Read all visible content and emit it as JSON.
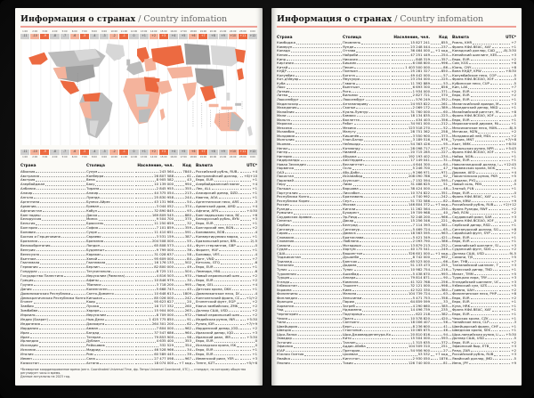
{
  "titles": {
    "ru": "Информация о странах",
    "sep": " / ",
    "en": "Country infomation"
  },
  "table_headers": [
    "Страна",
    "Столица",
    "Население, чел.",
    "Код",
    "Валюта",
    "UTC*"
  ],
  "timezone_scale": {
    "times": [
      "1:00",
      "2:00",
      "3:00",
      "4:00",
      "5:00",
      "6:00",
      "7:00",
      "8:00",
      "9:00",
      "10:00",
      "11:00",
      "12:00",
      "13:00",
      "14:00",
      "15:00",
      "16:00",
      "17:00",
      "18:00",
      "19:00",
      "20:00",
      "21:00",
      "22:00",
      "23:00",
      "0:00"
    ],
    "offsets": [
      "-11",
      "-10",
      "-9",
      "-8",
      "-7",
      "-6",
      "-5",
      "-4",
      "-3",
      "-2",
      "-1",
      "0",
      "+1",
      "+2",
      "+3",
      "+4",
      "+5",
      "+6",
      "+7",
      "+8",
      "+9",
      "+10",
      "+11",
      "+12"
    ],
    "strong": [
      "-9",
      "-5",
      "-1",
      "+3",
      "+7",
      "+11"
    ],
    "light": [
      "-10",
      "-6",
      "-2",
      "+2",
      "+6",
      "+10"
    ]
  },
  "footnote": {
    "line1": "*Всемирное координированное время (англ. Coordinated Universal Time, фр. Temps Universel Coordonné, UTC) — стандарт, по которому общество регулирует часы и время.",
    "line2": "Данные актуальны на 2023 год."
  },
  "left_table_rows": [
    [
      "Абхазия",
      "Сухум",
      "243 564",
      "7840",
      "Российский рубль, RUB",
      "+4"
    ],
    [
      "Австралия",
      "Канберра",
      "26 807 588",
      "61",
      "Австралийский доллар, AUD",
      "+8/+10"
    ],
    [
      "Австрия",
      "Вена",
      "8 905 582",
      "43",
      "Евро, EUR",
      "+1"
    ],
    [
      "Азербайджан",
      "Баку",
      "10 139 000",
      "994",
      "Азербайджанский манат, AZN",
      "+4"
    ],
    [
      "Албания",
      "Тирана",
      "2 845 955",
      "355",
      "Лек, ALL",
      "+1"
    ],
    [
      "Алжир",
      "Алжир",
      "44 375 054",
      "213",
      "Алжирский динар, DZD",
      "+1"
    ],
    [
      "Ангола",
      "Луанда",
      "25 830 958",
      "244",
      "Кванза, AOA",
      "+1"
    ],
    [
      "Аргентина",
      "Буэнос-Айрес",
      "43 131 966",
      "54",
      "Аргентинское песо, ARS",
      "-3"
    ],
    [
      "Армения",
      "Ереван",
      "3 044 052",
      "374",
      "Армянский драм, AMD",
      "+4"
    ],
    [
      "Афганистан",
      "Кабул",
      "32 890 845",
      "93",
      "Афгани, AFN",
      "+4:30"
    ],
    [
      "Бангладеш",
      "Дакка",
      "169 809 545",
      "880",
      "Бангладешская така, BDT",
      "+6"
    ],
    [
      "Белоруссия",
      "Минск",
      "9 504 700",
      "375",
      "Белорусский рубль, BYN",
      "+3"
    ],
    [
      "Бельгия",
      "Брюссель",
      "11 250 659",
      "32",
      "Евро, EUR",
      "+1"
    ],
    [
      "Болгария",
      "София",
      "7 101 859",
      "359",
      "Болгарский лев, BGN",
      "+2"
    ],
    [
      "Боливия",
      "Сукре",
      "11 410 651",
      "591",
      "Боливиано, BOB",
      "-4"
    ],
    [
      "Босния и Герцеговина",
      "Сараево",
      "3 531 159",
      "387",
      "Конвертируемая марка, BAM",
      "+1"
    ],
    [
      "Бразилия",
      "Бразилиа",
      "204 508 000",
      "55",
      "Бразильский реал, BRL",
      "-2/-5"
    ],
    [
      "Великобритания",
      "Лондон",
      "65 808 573",
      "44",
      "Фунт стерлингов, GBP",
      "0"
    ],
    [
      "Венгрия",
      "Будапешт",
      "9 799 000",
      "36",
      "Форинт, HUF",
      "+1"
    ],
    [
      "Венесуэла",
      "Каракас",
      "31 028 637",
      "58",
      "Боливар, VES",
      "-4"
    ],
    [
      "Вьетнам",
      "Ханой",
      "95 609 000",
      "84",
      "Донг, VND",
      "+7"
    ],
    [
      "Гватемала",
      "Гватемала",
      "16 176 133",
      "502",
      "Кетсаль, GTQ",
      "-6"
    ],
    [
      "Германия",
      "Берлин",
      "82 800 000",
      "49",
      "Евро, EUR",
      "+1"
    ],
    [
      "Гондурас",
      "Тегусигальпа",
      "8 725 111",
      "504",
      "Лемпира, HNL",
      "-6"
    ],
    [
      "Государство Палестина",
      "Иерусалим (Рамалла)",
      "4 816 503",
      "970",
      "Новый израильский шекель, ILS",
      "+2"
    ],
    [
      "Греция",
      "Афины",
      "10 846 979",
      "30",
      "Евро, EUR",
      "+2"
    ],
    [
      "Грузия",
      "Тбилиси",
      "3 718 200",
      "995",
      "Лари, GEL",
      "+4"
    ],
    [
      "Дания",
      "Копенгаген",
      "5 668 743",
      "45",
      "Датская крона, DKK",
      "+1"
    ],
    [
      "Доминиканская Республика",
      "Санто-Доминго",
      "10 648 613",
      "1809",
      "Доминиканское песо, DOP",
      "-4"
    ],
    [
      "Демократическая Республика Конго",
      "Киншаса",
      "85 026 000",
      "242",
      "Конголезский франк, CDF",
      "+1/+2"
    ],
    [
      "Египет",
      "Каир",
      "95 623 627",
      "20",
      "Египетский фунт, EGP",
      "+2"
    ],
    [
      "Замбия",
      "Лусака",
      "16 717 332",
      "260",
      "Квача замбийская, ZMK",
      "+2"
    ],
    [
      "Зимбабве",
      "Хараре",
      "15 904 000",
      "263",
      "Доллар США, USD",
      "+2"
    ],
    [
      "Израиль",
      "Иерусалим",
      "8 709 000",
      "972",
      "Новый израильский шекель, ILS",
      "+2"
    ],
    [
      "Индия (Бхарат)",
      "Нью-Дели",
      "1 425 775 850",
      "91",
      "Индийская рупия, INR",
      "+5:30"
    ],
    [
      "Индонезия",
      "Джакарта",
      "264 301 200",
      "62",
      "Рупия, IDR",
      "+7/+9"
    ],
    [
      "Иордания",
      "Амман",
      "7 804 000",
      "962",
      "Иорданский динар, JOD",
      "+2"
    ],
    [
      "Ирак",
      "Багдад",
      "37 547 686",
      "964",
      "Иракский динар, IQD",
      "+3"
    ],
    [
      "Иран",
      "Тегеран",
      "79 853 900",
      "98",
      "Иранский риал, IRR",
      "+3:30"
    ],
    [
      "Ирландия",
      "Дублин",
      "4 635 400",
      "353",
      "Евро, EUR",
      "0"
    ],
    [
      "Исландия",
      "Рейкьявик",
      "332 529",
      "354",
      "Исландская крона, ISK",
      "0"
    ],
    [
      "Испания",
      "Мадрид",
      "46 528 966",
      "34",
      "Евро, EUR",
      "+1"
    ],
    [
      "Италия",
      "Рим",
      "60 589 445",
      "39",
      "Евро, EUR",
      "+1"
    ],
    [
      "Йемен",
      "Сана",
      "27 477 098",
      "967",
      "Йеменский риал, YER",
      "+3"
    ],
    [
      "Казахстан",
      "Астана",
      "18 074 000",
      "+7 код",
      "Тенге, KZT",
      "+5/+6"
    ]
  ],
  "right_table_rows": [
    [
      "Камбоджа",
      "Пномпень",
      "15 827 241",
      "855",
      "Риель, KHR",
      "+7"
    ],
    [
      "Камерун",
      "Яунде",
      "23 248 044",
      "237",
      "Франк КФА BEAC, XAF",
      "+1"
    ],
    [
      "Канада",
      "Оттава",
      "36 464 000",
      "+1 код",
      "Канадский доллар, CAD",
      "-8/-3:30"
    ],
    [
      "Кения",
      "Найроби",
      "47 251 449",
      "254",
      "Кенийский шиллинг, KES",
      "+3"
    ],
    [
      "Кипр",
      "Никосия",
      "848 319",
      "357",
      "Евро, EUR",
      "+2"
    ],
    [
      "Киргизия",
      "Бишкек",
      "6 008 600",
      "996",
      "Сом, KGS",
      "+6"
    ],
    [
      "Китай",
      "Пекин",
      "1 403 500 000",
      "86",
      "Юань, CNY",
      "+8"
    ],
    [
      "КНДР",
      "Пхеньян",
      "25 281 327",
      "850",
      "Вона КНДР, KPW",
      "+8:30"
    ],
    [
      "Колумбия",
      "Богота",
      "49 442 000",
      "57",
      "Колумбийское песо, COP",
      "-5"
    ],
    [
      "Кот-д'Ивуар",
      "Ямусукро",
      "23 254 000",
      "225",
      "Франк КФА BCEAO, XOF",
      "0"
    ],
    [
      "Куба",
      "Гавана",
      "11 392 889",
      "53",
      "Кубинское песо, CUP",
      "-5"
    ],
    [
      "Лаос",
      "Вьентьян",
      "6 693 300",
      "856",
      "Кип, LAK",
      "+7"
    ],
    [
      "Латвия",
      "Рига",
      "1 934 000",
      "371",
      "Евро, EUR",
      "+2"
    ],
    [
      "Литва",
      "Вильнюс",
      "2 827 721",
      "370",
      "Евро, EUR",
      "+2"
    ],
    [
      "Люксембург",
      "Люксембург",
      "576 249",
      "352",
      "Евро, EUR",
      "+1"
    ],
    [
      "Мадагаскар",
      "Антананариву",
      "24 953 822",
      "261",
      "Малагасийский ариари, MGA",
      "+3"
    ],
    [
      "Македония",
      "Скопье",
      "2 069 172",
      "389",
      "Македонский денар, MKD",
      "+1"
    ],
    [
      "Малайзия",
      "Куала-Лумпур",
      "31 760 000",
      "60",
      "Малайзийский ринггит, MYR",
      "+8"
    ],
    [
      "Мали",
      "Бамако",
      "18 134 835",
      "223",
      "Франк КФА BCEAO, XOF",
      "0"
    ],
    [
      "Мальта",
      "Валлетта",
      "434 403",
      "356",
      "Евро, EUR",
      "+1"
    ],
    [
      "Марокко",
      "Рабат",
      "34 901 000",
      "212",
      "Марокканский дирхам, MAD",
      "+1"
    ],
    [
      "Мексика",
      "Мехико",
      "123 518 270",
      "52",
      "Мексиканское песо, MXN",
      "-8/-5"
    ],
    [
      "Мозамбик",
      "Мапуту",
      "28 751 362",
      "258",
      "Метикал, MZN",
      "+2"
    ],
    [
      "Молдавия",
      "Кишинёв",
      "3 550 900",
      "373",
      "Молдавский лей, MDL",
      "+2"
    ],
    [
      "Монголия",
      "Улан-Батор",
      "3 189 516",
      "976",
      "Тугрик, MNT",
      "+7/+8"
    ],
    [
      "Мьянма",
      "Нейпьидо",
      "54 363 426",
      "95",
      "Кьят, MMK",
      "+6:30"
    ],
    [
      "Непал",
      "Катманду",
      "28 098 717",
      "977",
      "Непальская рупия, NPR",
      "+5:45"
    ],
    [
      "Нигер",
      "Ниамей",
      "20 715 285",
      "227",
      "Франк КФА BCEAO, XOF",
      "+1"
    ],
    [
      "Нигерия",
      "Абуджа",
      "192 193 402",
      "234",
      "Найра, NGN",
      "+1"
    ],
    [
      "Нидерланды",
      "Амстердам",
      "17 149 041",
      "31",
      "Евро, EUR",
      "+1"
    ],
    [
      "Новая Зеландия",
      "Веллингтон",
      "4 644 300",
      "64",
      "Новозеландский доллар, NZD",
      "+12:45"
    ],
    [
      "Норвегия",
      "Осло",
      "5 246 700",
      "47",
      "Норвежская крона, NOK",
      "+1"
    ],
    [
      "ОАЭ",
      "Абу-Даби",
      "9 266 971",
      "971",
      "Дирхам, AED",
      "+4"
    ],
    [
      "Пакистан",
      "Исламабад",
      "208 090 786",
      "92",
      "Пакистанская рупия, PKR",
      "+5"
    ],
    [
      "Парагвай",
      "Асунсьон",
      "7 152 594",
      "595",
      "Гуарани, PYG",
      "-4"
    ],
    [
      "Перу",
      "Лима",
      "31 488 625",
      "51",
      "Новый соль, PEN",
      "-5"
    ],
    [
      "Польша",
      "Варшава",
      "38 424 000",
      "48",
      "Злотый, PLN",
      "+1"
    ],
    [
      "Португалия",
      "Лиссабон",
      "10 374 822",
      "351",
      "Евро, EUR",
      "0"
    ],
    [
      "Республика Конго",
      "Браззавиль",
      "4 740 992",
      "242",
      "Франк КФА BEAC, XAF",
      "+1"
    ],
    [
      "Республика Корея",
      "Сеул",
      "51 732 586",
      "82",
      "Вона, KRW",
      "+9"
    ],
    [
      "Россия",
      "Москва",
      "146 804 372",
      "+7 код",
      "Российский рубль, RUB",
      "+2/+12"
    ],
    [
      "Руанда",
      "Кигали",
      "11 262 564",
      "250",
      "Франк Руанды, RWF",
      "+2"
    ],
    [
      "Румыния",
      "Бухарест",
      "19 709 968",
      "40",
      "Лей, RON",
      "+2"
    ],
    [
      "Саудовская Аравия",
      "Эр-Рияд",
      "32 248 200",
      "966",
      "Саудовский риял, SAR",
      "+3"
    ],
    [
      "Сенегал",
      "Дакар",
      "15 256 346",
      "221",
      "Франк КФА BCEAO, XOF",
      "0"
    ],
    [
      "Сербия",
      "Белград",
      "7 114 393",
      "381",
      "Сербский динар, RSD",
      "+1"
    ],
    [
      "Сингапур",
      "Сингапур",
      "5 469 724",
      "65",
      "Сингапурский доллар, SGD",
      "+8"
    ],
    [
      "Сирия",
      "Дамаск",
      "18 563 595",
      "963",
      "Сирийский фунт, SYP",
      "+2"
    ],
    [
      "Словакия",
      "Братислава",
      "5 421 349",
      "421",
      "Евро, EUR",
      "+1"
    ],
    [
      "Словения",
      "Любляна",
      "2 093 790",
      "386",
      "Евро, EUR",
      "+1"
    ],
    [
      "Сомали",
      "Могадишо",
      "13 879 213",
      "252",
      "Сомалийский шиллинг, SOS",
      "+3"
    ],
    [
      "Судан",
      "Хартум",
      "40 175 541",
      "249",
      "Суданский фунт, SDG",
      "+2"
    ],
    [
      "США",
      "Вашингтон",
      "326 601 000",
      "+1 код",
      "Доллар США, USD",
      "-9/-5"
    ],
    [
      "Таджикистан",
      "Душанбе",
      "8 742 000",
      "992",
      "Сомони, TJS",
      "+5"
    ],
    [
      "Таиланд",
      "Бангкок",
      "65 523 000",
      "66",
      "Бат, THB",
      "+7"
    ],
    [
      "Танзания",
      "Додома",
      "51 133 473",
      "255",
      "Танзанийский шиллинг, TZS",
      "+3"
    ],
    [
      "Тунис",
      "Тунис",
      "10 982 754",
      "216",
      "Тунисский динар, TND",
      "+1"
    ],
    [
      "Туркмения",
      "Ашхабад",
      "5 438 670",
      "993",
      "Манат, TMM",
      "+5"
    ],
    [
      "Турция",
      "Анкара",
      "79 814 871",
      "90",
      "Турецкая лира, TRY",
      "+3"
    ],
    [
      "Уганда",
      "Кампала",
      "41 322 768",
      "256",
      "Угандийский шиллинг, UGX",
      "+3"
    ],
    [
      "Узбекистан",
      "Ташкент",
      "32 121 000",
      "998",
      "Узбекский сум, UZS",
      "+5"
    ],
    [
      "Украина",
      "Киев",
      "42 522 330",
      "380",
      "Гривна, UAH",
      "+2"
    ],
    [
      "Филиппины",
      "Манила",
      "104 739 724",
      "63",
      "Филиппинское песо, PHP",
      "+8"
    ],
    [
      "Финляндия",
      "Хельсинки",
      "5 471 753",
      "358",
      "Евро, EUR",
      "+2"
    ],
    [
      "Франция",
      "Париж",
      "64 859 599",
      "33",
      "Евро, EUR",
      "+1"
    ],
    [
      "Хорватия",
      "Загреб",
      "4 290 660",
      "385",
      "Куна, HRK",
      "+1"
    ],
    [
      "Чад",
      "Нджамена",
      "14 496 739",
      "235",
      "Франк КФА BEAC, XAF",
      "+1"
    ],
    [
      "Черногория",
      "Подгорица",
      "622 218",
      "382",
      "Евро, EUR",
      "+1"
    ],
    [
      "Чехия",
      "Прага",
      "10 578 820",
      "420",
      "Чешская крона, CZK",
      "+1"
    ],
    [
      "Чили",
      "Сантьяго",
      "18 006 407",
      "56",
      "Чилийское песо, CLP",
      "-3"
    ],
    [
      "Швейцария",
      "Берн",
      "8 236 600",
      "41",
      "Швейцарский франк, CHF",
      "+1"
    ],
    [
      "Швеция",
      "Стокгольм",
      "10 065 675",
      "46",
      "Шведская крона, SEK",
      "+1"
    ],
    [
      "Шри-Ланка",
      "Шри-Джаяварденепура-Котте",
      "20 810 816",
      "94",
      "Шри-ланкийская рупия, LKR",
      "+5:30"
    ],
    [
      "Эквадор",
      "Кито",
      "15 504 000",
      "593",
      "Доллар США, USD",
      "-5"
    ],
    [
      "Эстония",
      "Таллин",
      "1 315 635",
      "372",
      "Евро, EUR",
      "+2"
    ],
    [
      "Эфиопия",
      "Аддис-Абеба",
      "104 509 310",
      "251",
      "Эфиопский быр, ETB",
      "+3"
    ],
    [
      "ЮАР",
      "Претория",
      "54 956 900",
      "27",
      "Ранд, ZAR",
      "+2"
    ],
    [
      "Южная Осетия",
      "Цхинвал",
      "53 532",
      "+7 код",
      "Российский рубль, RUB",
      "+3"
    ],
    [
      "Ямайка",
      "Кингстон",
      "2 930 050",
      "1876",
      "Ямайский доллар, JMD",
      "-5"
    ],
    [
      "Япония",
      "Токио",
      "126 740 000",
      "81",
      "Иена, JPY",
      "+9"
    ]
  ],
  "colors": {
    "accent_underline": "#efa096",
    "map_strong_orange": "#ec6a41",
    "map_light_orange": "#f4b39c",
    "map_grey": "#bcbcbc",
    "map_grey_dark": "#9f9f9f",
    "map_grey_light": "#d7d7d7",
    "page": "#fbfaf6",
    "cover": "#121212"
  }
}
